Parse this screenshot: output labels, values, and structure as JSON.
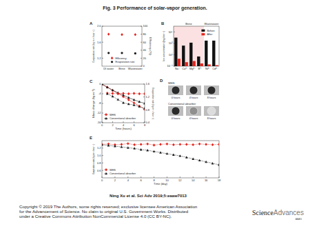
{
  "page": {
    "title": "Fig. 3 Performance of solar-vapor generation.",
    "citation": "Ning Xu et al. Sci Adv 2019;5:eaaw7013",
    "copyright": [
      "Copyright © 2019 The Authors, some rights reserved; exclusive licensee American Association",
      "for the Advancement of Science. No claim to original U.S. Government Works. Distributed",
      "under a Creative Commons Attribution NonCommercial License 4.0 (CC BY-NC)."
    ],
    "logo": [
      "Science",
      "Advances"
    ],
    "logo_sub": "AAAS"
  },
  "photos": {
    "panel": "D",
    "rows": [
      "WHS",
      "Conventional absorber"
    ],
    "columns": [
      "0 hours",
      "4 hours",
      "8 hours"
    ]
  },
  "chart_data": [
    {
      "panel": "A",
      "type": "scatter",
      "categories": [
        "DI water",
        "Brine",
        "Wastewater"
      ],
      "ylabel": "Evaporation rate (kg m⁻² hour⁻¹)",
      "y2label": "Efficiency (%)",
      "ylim": [
        1.0,
        2.0
      ],
      "yticks": [
        1.2,
        1.6,
        {
          "value": 2,
          "label": "2.0"
        }
      ],
      "y2lim": [
        0,
        100
      ],
      "y2ticks": [
        0,
        20,
        40,
        60,
        80,
        100
      ],
      "legend": "bottom-right",
      "series": [
        {
          "name": "Efficiency",
          "color": "#e3261f",
          "marker": "diamond",
          "axis": "y2",
          "values": [
            80,
            79,
            79
          ]
        },
        {
          "name": "Evaporation rate",
          "color": "#1a1a1a",
          "marker": "circle",
          "values": [
            1.33,
            1.33,
            1.32
          ]
        }
      ]
    },
    {
      "panel": "B",
      "type": "bar",
      "log": "y",
      "categories": [
        "Na⁺",
        "Ca²⁺",
        "Mg²⁺",
        "B³⁺",
        "Ni²⁺",
        "Cd²⁺"
      ],
      "ylabel": "Ion concentration (mg liter⁻¹)",
      "ylim": [
        0.1,
        1000000
      ],
      "yticks": [
        {
          "value": 0.1,
          "label": "10⁻¹"
        },
        {
          "value": 10,
          "label": "10¹"
        },
        {
          "value": 1000,
          "label": "10³"
        },
        {
          "value": 100000,
          "label": "10⁵"
        }
      ],
      "groups": [
        {
          "label": "Brine",
          "count": 4
        },
        {
          "label": "Wastewater",
          "count": 2
        }
      ],
      "legend": "top-right",
      "series": [
        {
          "name": "Before",
          "color": "#111111",
          "values": [
            10000,
            400,
            1300,
            5,
            3000,
            3000
          ]
        },
        {
          "name": "After",
          "color": "#e3261f",
          "values": [
            2,
            0.5,
            0.8,
            0.3,
            0.2,
            0.15
          ]
        }
      ]
    },
    {
      "panel": "C",
      "type": "line",
      "xlabel": "Time (hours)",
      "ylabel": "Mass change (kg m⁻²)",
      "y2label": "Evaporation rate (kg m⁻² hour⁻¹)",
      "xlim": [
        0,
        8
      ],
      "xticks": [
        0,
        2,
        4,
        6,
        8
      ],
      "ylim": [
        -16,
        0
      ],
      "yticks": [
        -16,
        -12,
        -8,
        -4,
        0
      ],
      "y2lim": [
        0.4,
        1.6
      ],
      "y2ticks": [
        0.4,
        0.8,
        1.2,
        1.6
      ],
      "legend": "bottom-left",
      "series": [
        {
          "name": "WHS",
          "color": "#e3261f",
          "marker": "diamond",
          "x": [
            0,
            1,
            2,
            3,
            4,
            5,
            6,
            7,
            8
          ],
          "values": [
            0,
            -1.3,
            -2.6,
            -3.9,
            -5.2,
            -6.5,
            -7.8,
            -9.1,
            -10.4
          ]
        },
        {
          "name": "Conventional absorber",
          "color": "#1a1a1a",
          "marker": "triangle",
          "x": [
            0,
            1,
            2,
            3,
            4,
            5,
            6,
            7,
            8
          ],
          "values": [
            0,
            -1.3,
            -2.5,
            -3.6,
            -4.6,
            -5.6,
            -6.5,
            -7.3,
            -8.0
          ]
        },
        {
          "color": "#e3261f",
          "marker": "diamond",
          "line_style": "dashed",
          "axis": "y2",
          "x": [
            1,
            2,
            3,
            4,
            5,
            6,
            7,
            8
          ],
          "values": [
            1.32,
            1.31,
            1.3,
            1.31,
            1.3,
            1.31,
            1.3,
            1.3
          ]
        },
        {
          "color": "#1a1a1a",
          "marker": "triangle",
          "line_style": "dashed",
          "axis": "y2",
          "x": [
            1,
            2,
            3,
            4,
            5,
            6,
            7,
            8
          ],
          "values": [
            1.3,
            1.22,
            1.12,
            1.02,
            0.98,
            0.95,
            0.9,
            0.85
          ]
        }
      ]
    },
    {
      "panel": "E",
      "type": "line",
      "xlabel": "Time (day)",
      "ylabel": "Evaporation rate (kg m⁻² hour⁻¹)",
      "xlim": [
        0,
        18
      ],
      "xticks": [
        0,
        2,
        4,
        6,
        8,
        10,
        12,
        14,
        16,
        18
      ],
      "ylim": [
        0.4,
        1.4
      ],
      "yticks": [
        0.6,
        0.8,
        {
          "value": 1,
          "label": "1.0"
        },
        1.2
      ],
      "legend": "bottom-left",
      "series": [
        {
          "name": "WHS",
          "color": "#e3261f",
          "marker": "diamond",
          "line_style": "dashed",
          "x": [
            0,
            1,
            2,
            3,
            4,
            5,
            6,
            7,
            8,
            9,
            10,
            11,
            12,
            13,
            14,
            15,
            16,
            17,
            18
          ],
          "values": [
            1.3,
            1.31,
            1.29,
            1.3,
            1.32,
            1.29,
            1.3,
            1.31,
            1.28,
            1.3,
            1.31,
            1.29,
            1.3,
            1.3,
            1.29,
            1.31,
            1.3,
            1.29,
            1.3
          ]
        },
        {
          "name": "Conventional absorber",
          "color": "#1a1a1a",
          "marker": "triangle",
          "line_style": "dashed",
          "x": [
            0,
            1,
            2,
            3,
            4,
            5,
            6,
            7,
            8,
            9,
            10,
            11,
            12,
            13,
            14,
            15,
            16,
            17,
            18
          ],
          "values": [
            1.29,
            1.27,
            1.25,
            1.23,
            1.21,
            1.19,
            1.16,
            1.14,
            1.11,
            1.08,
            1.05,
            1.02,
            0.99,
            0.95,
            0.91,
            0.87,
            0.83,
            0.79,
            0.75
          ]
        }
      ]
    }
  ]
}
